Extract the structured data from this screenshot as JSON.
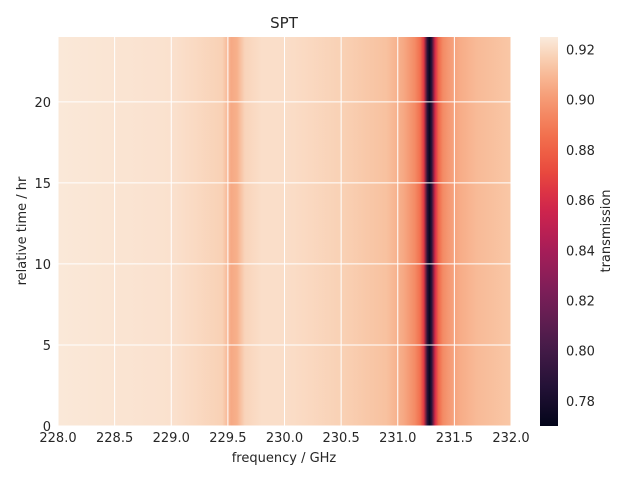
{
  "chart_data": {
    "type": "heatmap",
    "title": "SPT",
    "xlabel": "frequency / GHz",
    "ylabel": "relative time / hr",
    "colorbar_label": "transmission",
    "xlim": [
      228.0,
      232.0
    ],
    "ylim": [
      0,
      24
    ],
    "x_ticks": [
      "228.0",
      "228.5",
      "229.0",
      "229.5",
      "230.0",
      "230.5",
      "231.0",
      "231.5",
      "232.0"
    ],
    "y_ticks": [
      "0",
      "5",
      "10",
      "15",
      "20"
    ],
    "colorbar_range": [
      0.77,
      0.925
    ],
    "colorbar_ticks": [
      "0.78",
      "0.80",
      "0.82",
      "0.84",
      "0.86",
      "0.88",
      "0.90",
      "0.92"
    ],
    "colormap": "rocket",
    "grid": true,
    "transmission_profile": {
      "x": [
        228.0,
        229.0,
        229.45,
        229.53,
        229.58,
        229.65,
        229.8,
        230.0,
        230.5,
        230.9,
        231.05,
        231.15,
        231.2,
        231.23,
        231.26,
        231.28,
        231.3,
        231.33,
        231.36,
        231.4,
        231.45,
        231.55,
        231.7,
        232.0
      ],
      "values": [
        0.924,
        0.922,
        0.917,
        0.905,
        0.907,
        0.918,
        0.921,
        0.921,
        0.917,
        0.912,
        0.905,
        0.895,
        0.885,
        0.865,
        0.79,
        0.772,
        0.79,
        0.86,
        0.883,
        0.895,
        0.9,
        0.906,
        0.91,
        0.914
      ]
    },
    "time_variation": "none"
  }
}
